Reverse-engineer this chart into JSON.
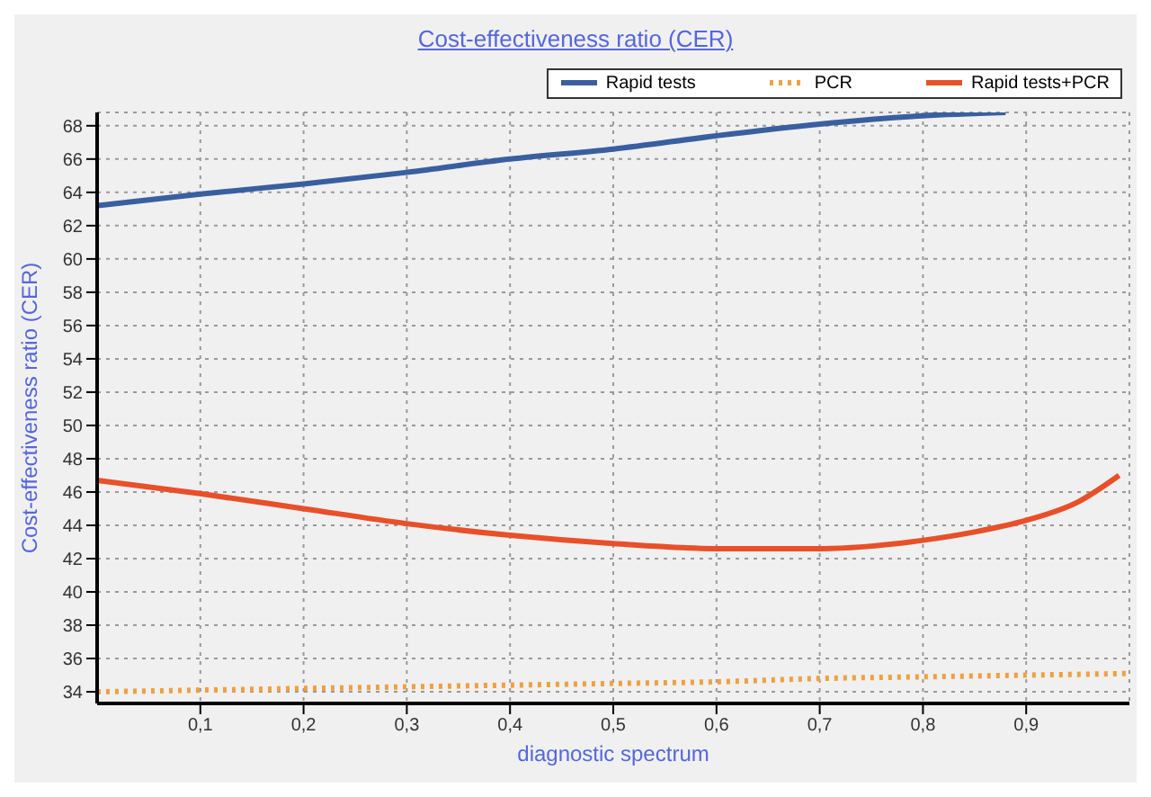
{
  "chart_data": {
    "type": "line",
    "title": "Cost-effectiveness ratio (CER)",
    "xlabel": "diagnostic spectrum",
    "ylabel": "Cost-effectiveness ratio (CER)",
    "xlim": [
      0,
      1
    ],
    "ylim": [
      33.3,
      68.8
    ],
    "xticks": [
      {
        "value": 0.1,
        "label": "0,1"
      },
      {
        "value": 0.2,
        "label": "0,2"
      },
      {
        "value": 0.3,
        "label": "0,3"
      },
      {
        "value": 0.4,
        "label": "0,4"
      },
      {
        "value": 0.5,
        "label": "0,5"
      },
      {
        "value": 0.6,
        "label": "0,6"
      },
      {
        "value": 0.7,
        "label": "0,7"
      },
      {
        "value": 0.8,
        "label": "0,8"
      },
      {
        "value": 0.9,
        "label": "0,9"
      }
    ],
    "yticks": [
      34,
      36,
      38,
      40,
      42,
      44,
      46,
      48,
      50,
      52,
      54,
      56,
      58,
      60,
      62,
      64,
      66,
      68
    ],
    "grid": true,
    "legend": "top right",
    "marker": "none",
    "series": [
      {
        "name": "Rapid tests",
        "color": "#3a5fa0",
        "line_style": "solid",
        "x": [
          0,
          0.1,
          0.2,
          0.3,
          0.4,
          0.5,
          0.6,
          0.7,
          0.8,
          0.88
        ],
        "values": [
          63.2,
          63.9,
          64.5,
          65.2,
          66.0,
          66.6,
          67.4,
          68.1,
          68.6,
          68.8
        ]
      },
      {
        "name": "PCR",
        "color": "#f0a040",
        "line_style": "dotted",
        "x": [
          0,
          0.1,
          0.2,
          0.3,
          0.4,
          0.5,
          0.6,
          0.7,
          0.8,
          0.9,
          1
        ],
        "values": [
          34.0,
          34.1,
          34.2,
          34.3,
          34.4,
          34.5,
          34.6,
          34.8,
          34.9,
          35.0,
          35.1
        ]
      },
      {
        "name": "Rapid tests+PCR",
        "color": "#e8502a",
        "line_style": "solid",
        "x": [
          0,
          0.1,
          0.2,
          0.3,
          0.4,
          0.5,
          0.6,
          0.7,
          0.8,
          0.85,
          0.9,
          0.95,
          0.99
        ],
        "values": [
          46.7,
          45.9,
          45.0,
          44.1,
          43.4,
          42.9,
          42.6,
          42.6,
          43.1,
          43.6,
          44.3,
          45.4,
          47.0
        ]
      }
    ]
  }
}
